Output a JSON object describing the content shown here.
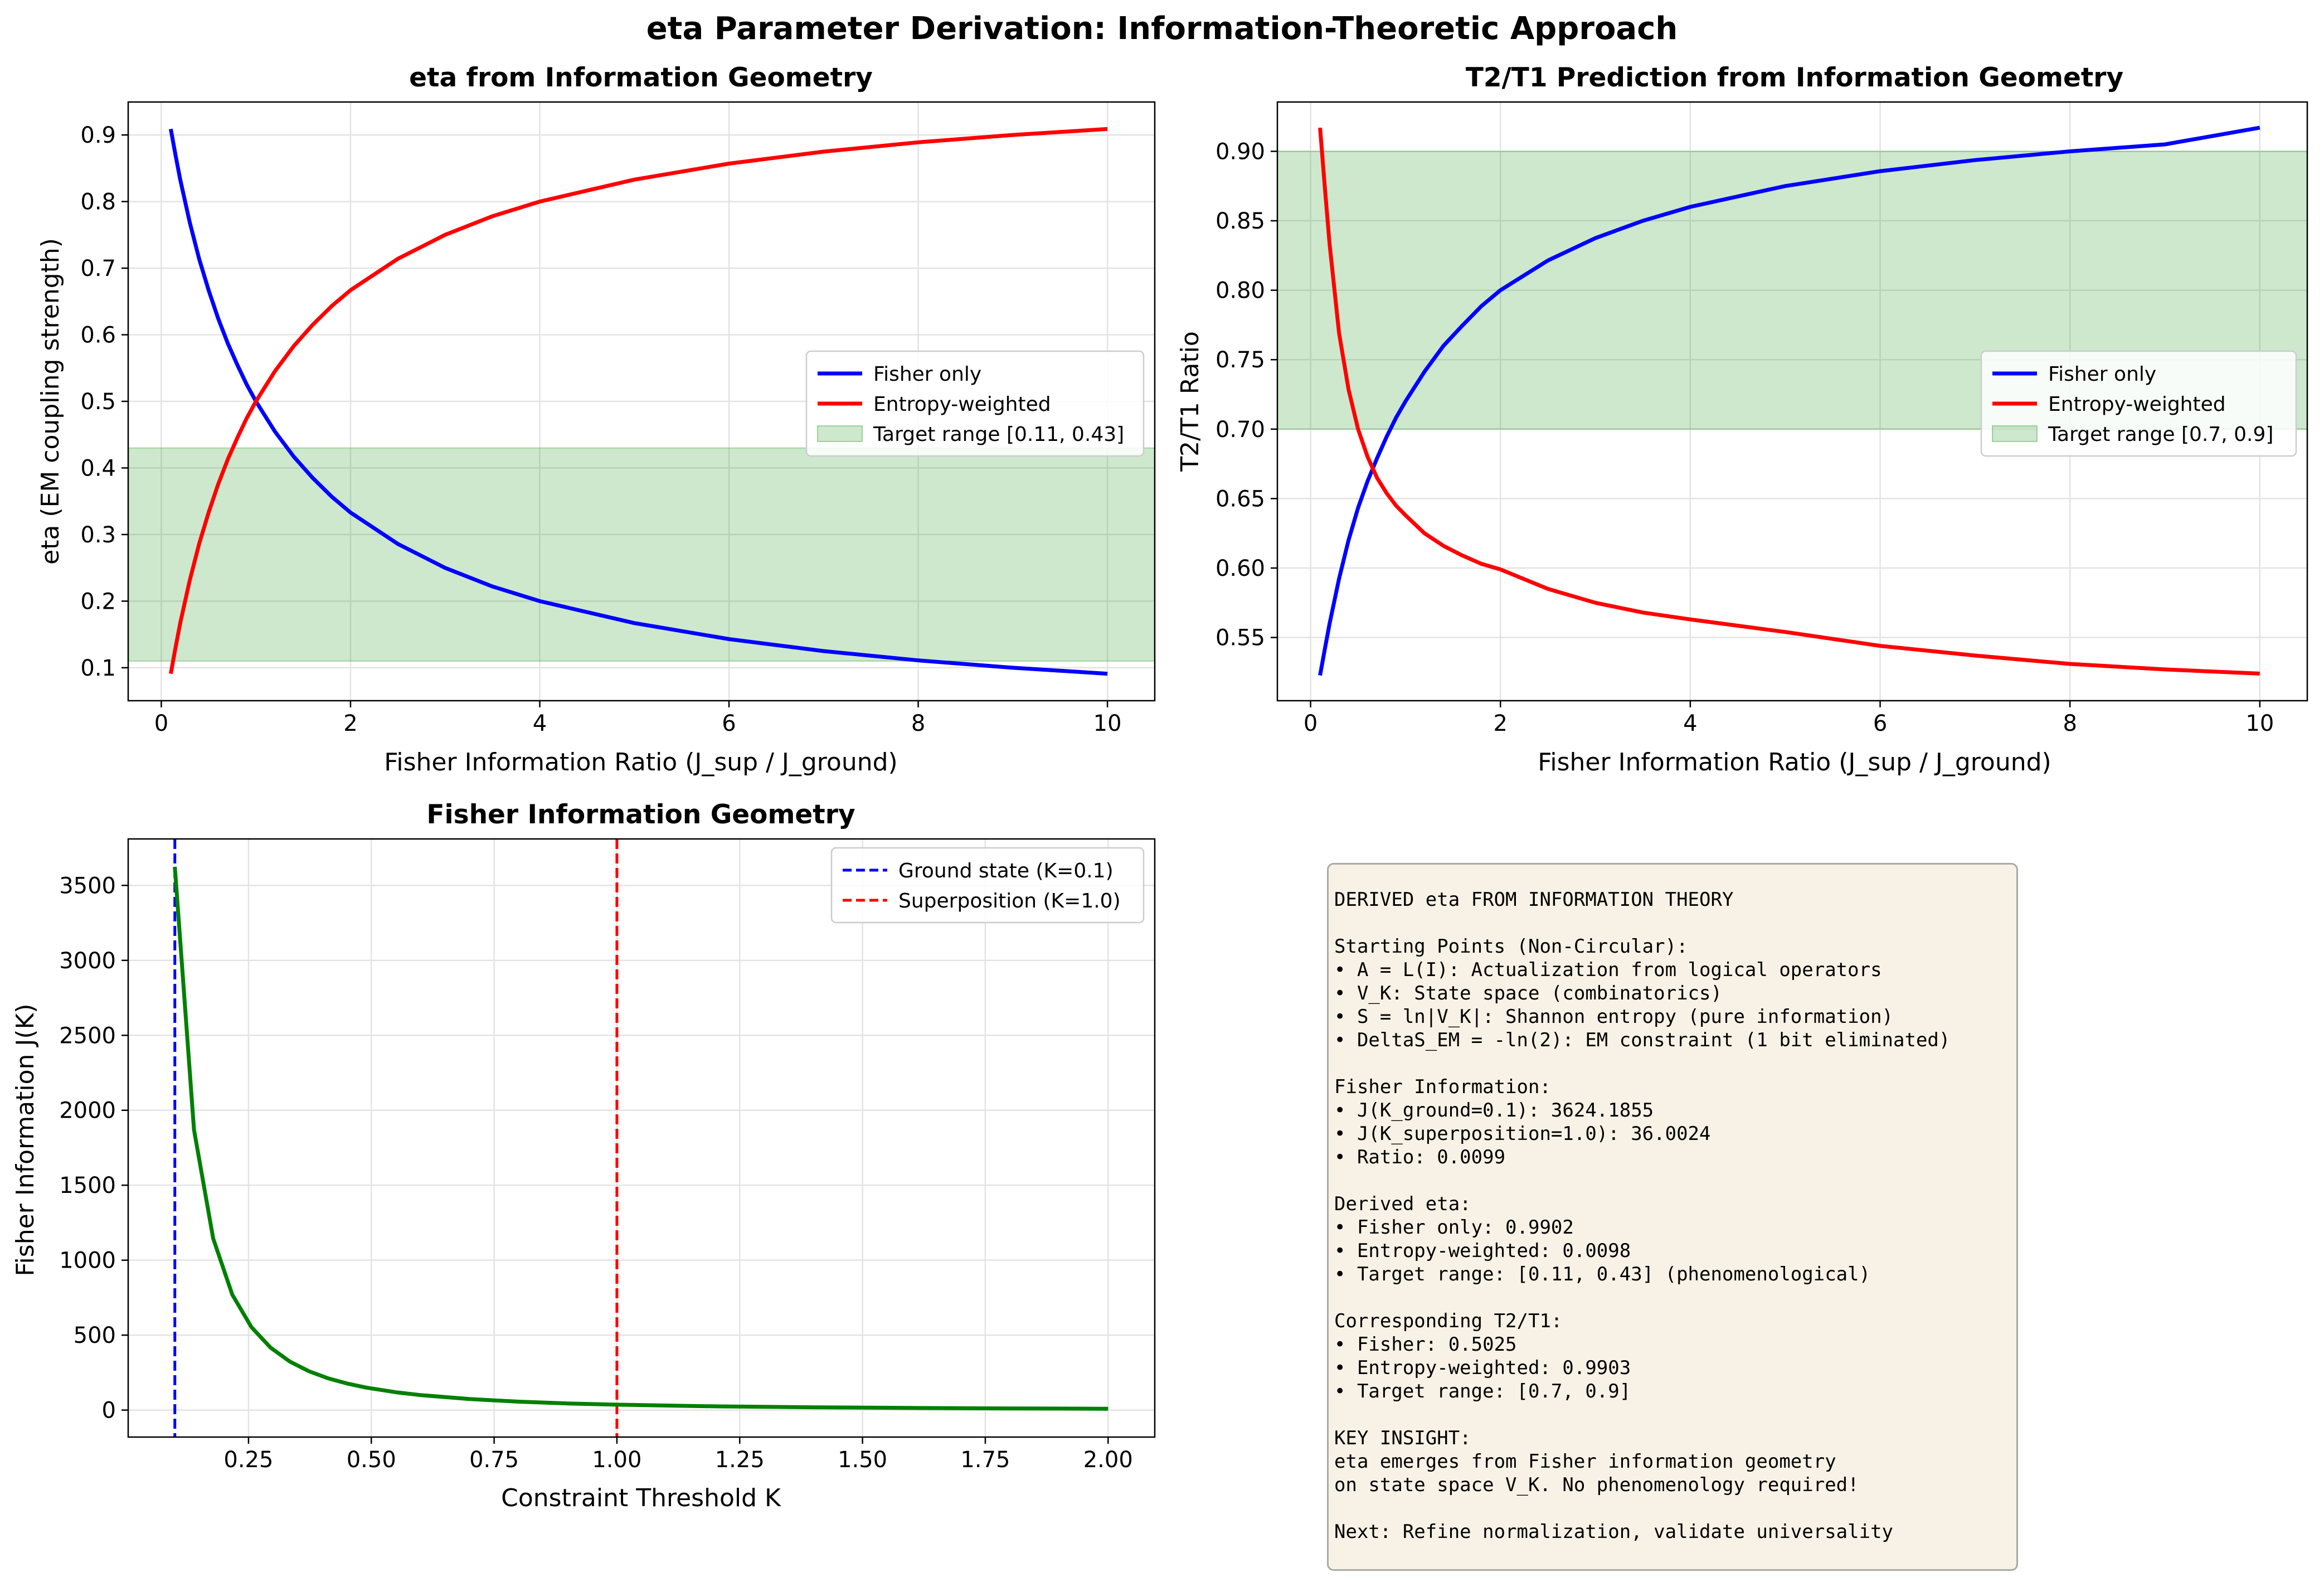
{
  "figure": {
    "suptitle": "eta Parameter Derivation: Information-Theoretic Approach"
  },
  "chart_data": [
    {
      "id": "eta",
      "type": "line",
      "title": "eta from Information Geometry",
      "xlabel": "Fisher Information Ratio (J_sup / J_ground)",
      "ylabel": "eta (EM coupling strength)",
      "xlim": [
        -0.35,
        10.5
      ],
      "ylim": [
        0.0505,
        0.9495
      ],
      "xticks": [
        0,
        2,
        4,
        6,
        8,
        10
      ],
      "yticks": [
        0.1,
        0.2,
        0.3,
        0.4,
        0.5,
        0.6,
        0.7,
        0.8,
        0.9
      ],
      "grid": true,
      "legend_position": "center-right",
      "band": {
        "label": "Target range [0.11, 0.43]",
        "y0": 0.11,
        "y1": 0.43,
        "color": "#2ca02c"
      },
      "series": [
        {
          "name": "Fisher only",
          "color": "#0000ff",
          "x": [
            0.1,
            0.15,
            0.2,
            0.3,
            0.4,
            0.5,
            0.6,
            0.7,
            0.8,
            0.9,
            1.0,
            1.2,
            1.4,
            1.6,
            1.8,
            2.0,
            2.5,
            3.0,
            3.5,
            4.0,
            5.0,
            6.0,
            7.0,
            8.0,
            9.0,
            10.0
          ],
          "y": [
            0.909,
            0.87,
            0.833,
            0.769,
            0.714,
            0.667,
            0.625,
            0.588,
            0.556,
            0.526,
            0.5,
            0.455,
            0.417,
            0.385,
            0.357,
            0.333,
            0.286,
            0.25,
            0.222,
            0.2,
            0.167,
            0.143,
            0.125,
            0.111,
            0.1,
            0.091
          ]
        },
        {
          "name": "Entropy-weighted",
          "color": "#ff0000",
          "x": [
            0.1,
            0.15,
            0.2,
            0.3,
            0.4,
            0.5,
            0.6,
            0.7,
            0.8,
            0.9,
            1.0,
            1.2,
            1.4,
            1.6,
            1.8,
            2.0,
            2.5,
            3.0,
            3.5,
            4.0,
            5.0,
            6.0,
            7.0,
            8.0,
            9.0,
            10.0
          ],
          "y": [
            0.091,
            0.13,
            0.167,
            0.231,
            0.286,
            0.333,
            0.375,
            0.412,
            0.444,
            0.474,
            0.5,
            0.545,
            0.583,
            0.615,
            0.643,
            0.667,
            0.714,
            0.75,
            0.778,
            0.8,
            0.833,
            0.857,
            0.875,
            0.889,
            0.9,
            0.909
          ]
        }
      ]
    },
    {
      "id": "t2t1",
      "type": "line",
      "title": "T2/T1 Prediction from Information Geometry",
      "xlabel": "Fisher Information Ratio (J_sup / J_ground)",
      "ylabel": "T2/T1 Ratio",
      "xlim": [
        -0.35,
        10.5
      ],
      "ylim": [
        0.5045,
        0.9355
      ],
      "xticks": [
        0,
        2,
        4,
        6,
        8,
        10
      ],
      "yticks": [
        0.55,
        0.6,
        0.65,
        0.7,
        0.75,
        0.8,
        0.85,
        0.9
      ],
      "grid": true,
      "legend_position": "center-right",
      "band": {
        "label": "Target range [0.7, 0.9]",
        "y0": 0.7,
        "y1": 0.9,
        "color": "#2ca02c"
      },
      "series": [
        {
          "name": "Fisher only",
          "color": "#0000ff",
          "x": [
            0.1,
            0.15,
            0.2,
            0.3,
            0.4,
            0.5,
            0.6,
            0.7,
            0.8,
            0.9,
            1.0,
            1.2,
            1.4,
            1.6,
            1.8,
            2.0,
            2.5,
            3.0,
            3.5,
            4.0,
            5.0,
            6.0,
            7.0,
            8.0,
            9.0,
            10.0
          ],
          "y": [
            0.5227,
            0.5417,
            0.56,
            0.5923,
            0.62,
            0.6433,
            0.6625,
            0.679,
            0.6944,
            0.7082,
            0.72,
            0.7414,
            0.76,
            0.7746,
            0.7886,
            0.8,
            0.8214,
            0.8375,
            0.85,
            0.86,
            0.875,
            0.8857,
            0.8937,
            0.9,
            0.905,
            0.917
          ]
        },
        {
          "name": "Entropy-weighted",
          "color": "#ff0000",
          "x": [
            0.1,
            0.15,
            0.2,
            0.3,
            0.4,
            0.5,
            0.6,
            0.7,
            0.8,
            0.9,
            1.0,
            1.2,
            1.4,
            1.6,
            1.8,
            2.0,
            2.5,
            3.0,
            3.5,
            4.0,
            5.0,
            6.0,
            7.0,
            8.0,
            9.0,
            10.0
          ],
          "y": [
            0.917,
            0.8739,
            0.8333,
            0.7692,
            0.7286,
            0.7,
            0.6801,
            0.665,
            0.654,
            0.645,
            0.638,
            0.625,
            0.616,
            0.609,
            0.603,
            0.599,
            0.585,
            0.575,
            0.568,
            0.563,
            0.554,
            0.544,
            0.537,
            0.531,
            0.527,
            0.524
          ]
        }
      ]
    },
    {
      "id": "fisher",
      "type": "line",
      "title": "Fisher Information Geometry",
      "xlabel": "Constraint Threshold K",
      "ylabel": "Fisher Information J(K)",
      "xlim": [
        0.005,
        2.095
      ],
      "ylim": [
        -180,
        3810
      ],
      "xticks": [
        0.25,
        0.5,
        0.75,
        1.0,
        1.25,
        1.5,
        1.75,
        2.0
      ],
      "xticklabels": [
        "0.25",
        "0.50",
        "0.75",
        "1.00",
        "1.25",
        "1.50",
        "1.75",
        "2.00"
      ],
      "yticks": [
        0,
        500,
        1000,
        1500,
        2000,
        2500,
        3000,
        3500
      ],
      "grid": true,
      "legend_position": "top-right",
      "vlines": [
        {
          "name": "Ground state (K=0.1)",
          "x": 0.1,
          "color": "#0000ff"
        },
        {
          "name": "Superposition (K=1.0)",
          "x": 1.0,
          "color": "#ff0000"
        }
      ],
      "series": [
        {
          "name": "",
          "color": "#008000",
          "x": [
            0.1,
            0.139,
            0.178,
            0.217,
            0.256,
            0.295,
            0.334,
            0.373,
            0.412,
            0.451,
            0.49,
            0.55,
            0.6,
            0.7,
            0.8,
            0.9,
            1.0,
            1.2,
            1.4,
            1.6,
            1.8,
            2.0
          ],
          "y": [
            3624,
            1870,
            1145,
            770,
            553,
            416,
            324,
            259,
            212,
            177,
            150,
            119,
            100,
            73.5,
            56.3,
            44.4,
            36.0,
            25.0,
            18.4,
            14.1,
            11.1,
            9.0
          ]
        }
      ]
    }
  ],
  "textbox": {
    "lines": [
      "DERIVED eta FROM INFORMATION THEORY",
      "",
      "Starting Points (Non-Circular):",
      "• A = L(I): Actualization from logical operators",
      "• V_K: State space (combinatorics)",
      "• S = ln|V_K|: Shannon entropy (pure information)",
      "• DeltaS_EM = -ln(2): EM constraint (1 bit eliminated)",
      "",
      "Fisher Information:",
      "• J(K_ground=0.1): 3624.1855",
      "• J(K_superposition=1.0): 36.0024",
      "• Ratio: 0.0099",
      "",
      "Derived eta:",
      "• Fisher only: 0.9902",
      "• Entropy-weighted: 0.0098",
      "• Target range: [0.11, 0.43] (phenomenological)",
      "",
      "Corresponding T2/T1:",
      "• Fisher: 0.5025",
      "• Entropy-weighted: 0.9903",
      "• Target range: [0.7, 0.9]",
      "",
      "KEY INSIGHT:",
      "eta emerges from Fisher information geometry",
      "on state space V_K. No phenomenology required!",
      "",
      "Next: Refine normalization, validate universality"
    ]
  }
}
